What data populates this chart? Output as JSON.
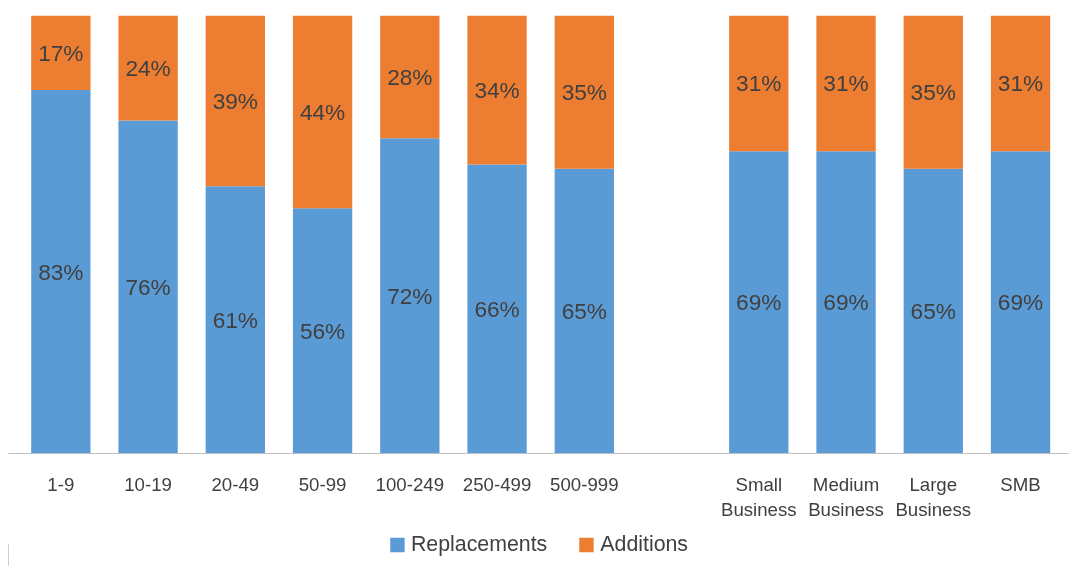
{
  "chart_data": {
    "type": "bar",
    "stacked": true,
    "categories": [
      "1-9",
      "10-19",
      "20-49",
      "50-99",
      "100-249",
      "250-499",
      "500-999",
      null,
      "Small Business",
      "Medium Business",
      "Large Business",
      "SMB"
    ],
    "series": [
      {
        "name": "Replacements",
        "color": "#5b9bd5",
        "values": [
          83,
          76,
          61,
          56,
          72,
          66,
          65,
          null,
          69,
          69,
          65,
          69
        ],
        "value_labels": [
          "83%",
          "76%",
          "61%",
          "56%",
          "72%",
          "66%",
          "65%",
          null,
          "69%",
          "69%",
          "65%",
          "69%"
        ]
      },
      {
        "name": "Additions",
        "color": "#ed7d31",
        "values": [
          17,
          24,
          39,
          44,
          28,
          34,
          35,
          null,
          31,
          31,
          35,
          31
        ],
        "value_labels": [
          "17%",
          "24%",
          "39%",
          "44%",
          "28%",
          "34%",
          "35%",
          null,
          "31%",
          "31%",
          "35%",
          "31%"
        ]
      }
    ],
    "ylim": [
      0,
      100
    ],
    "legend": "bottom",
    "grid": false
  }
}
